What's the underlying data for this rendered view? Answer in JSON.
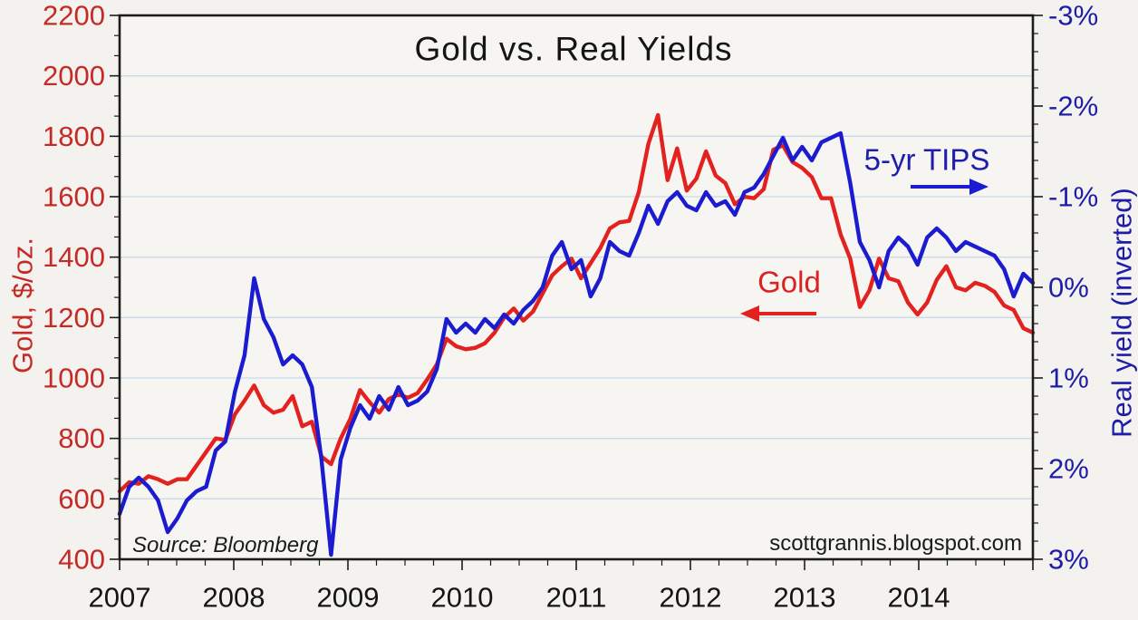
{
  "page": {
    "background": "#f4f2ee"
  },
  "chart_data": {
    "type": "line",
    "title": "Gold vs. Real Yields",
    "source_note": "Source: Bloomberg",
    "watermark": "scottgrannis.blogspot.com",
    "frequency": "monthly",
    "start": "2007-01",
    "end": "2014-12",
    "grid": "horizontal-only",
    "grid_color": "#c9d9e8",
    "x_axis": {
      "tick_labels": [
        "2007",
        "2008",
        "2009",
        "2010",
        "2011",
        "2012",
        "2013",
        "2014"
      ],
      "tick_values": [
        2007,
        2008,
        2009,
        2010,
        2011,
        2012,
        2013,
        2014
      ],
      "range": [
        2007,
        2015
      ],
      "minor_ticks_per_interval": 3
    },
    "left_axis": {
      "title": "Gold, $/oz.",
      "label_color": "#c62a26",
      "tick_labels": [
        "2200",
        "2000",
        "1800",
        "1600",
        "1400",
        "1200",
        "1000",
        "800",
        "600",
        "400"
      ],
      "tick_values": [
        2200,
        2000,
        1800,
        1600,
        1400,
        1200,
        1000,
        800,
        600,
        400
      ],
      "range": [
        400,
        2200
      ],
      "minor_ticks_per_interval": 2
    },
    "right_axis": {
      "title": "Real yield (inverted)",
      "label_color": "#1d1da8",
      "inverted": true,
      "tick_labels": [
        "-3%",
        "-2%",
        "-1%",
        "0%",
        "1%",
        "2%",
        "3%"
      ],
      "tick_values": [
        -3,
        -2,
        -1,
        0,
        1,
        2,
        3
      ],
      "range": [
        -3,
        3
      ],
      "minor_ticks_per_interval": 4
    },
    "series": [
      {
        "name": "Gold",
        "annotation": "Gold",
        "axis": "left",
        "color": "#e32220",
        "units": "$/oz.",
        "values": [
          625,
          655,
          650,
          675,
          665,
          650,
          665,
          665,
          710,
          755,
          800,
          795,
          880,
          925,
          975,
          910,
          885,
          895,
          940,
          840,
          855,
          740,
          715,
          800,
          865,
          960,
          920,
          885,
          930,
          945,
          935,
          950,
          995,
          1045,
          1130,
          1105,
          1095,
          1100,
          1115,
          1150,
          1200,
          1230,
          1190,
          1220,
          1280,
          1340,
          1370,
          1395,
          1330,
          1380,
          1430,
          1495,
          1515,
          1520,
          1615,
          1775,
          1870,
          1655,
          1760,
          1620,
          1660,
          1750,
          1670,
          1645,
          1575,
          1600,
          1595,
          1625,
          1755,
          1770,
          1715,
          1695,
          1665,
          1595,
          1595,
          1475,
          1395,
          1235,
          1290,
          1395,
          1330,
          1320,
          1250,
          1210,
          1250,
          1325,
          1370,
          1300,
          1290,
          1315,
          1305,
          1285,
          1240,
          1225,
          1165,
          1150
        ]
      },
      {
        "name": "5-yr TIPS real yield",
        "annotation": "5-yr TIPS",
        "axis": "right",
        "color": "#1b1bd0",
        "units": "%",
        "values": [
          2.5,
          2.2,
          2.1,
          2.2,
          2.35,
          2.7,
          2.55,
          2.35,
          2.25,
          2.2,
          1.8,
          1.7,
          1.15,
          0.75,
          -0.1,
          0.35,
          0.55,
          0.85,
          0.75,
          0.85,
          1.1,
          1.9,
          2.95,
          1.9,
          1.55,
          1.3,
          1.45,
          1.2,
          1.35,
          1.1,
          1.3,
          1.25,
          1.15,
          0.9,
          0.35,
          0.5,
          0.4,
          0.5,
          0.35,
          0.45,
          0.3,
          0.4,
          0.25,
          0.15,
          0.0,
          -0.35,
          -0.5,
          -0.2,
          -0.3,
          0.1,
          -0.1,
          -0.5,
          -0.4,
          -0.35,
          -0.6,
          -0.9,
          -0.7,
          -0.95,
          -1.05,
          -0.9,
          -0.85,
          -1.05,
          -0.9,
          -0.95,
          -0.8,
          -1.05,
          -1.1,
          -1.25,
          -1.45,
          -1.65,
          -1.4,
          -1.55,
          -1.4,
          -1.6,
          -1.65,
          -1.7,
          -1.15,
          -0.5,
          -0.3,
          0.0,
          -0.4,
          -0.55,
          -0.45,
          -0.25,
          -0.55,
          -0.65,
          -0.55,
          -0.4,
          -0.5,
          -0.45,
          -0.4,
          -0.35,
          -0.2,
          0.1,
          -0.15,
          -0.05
        ]
      }
    ]
  }
}
